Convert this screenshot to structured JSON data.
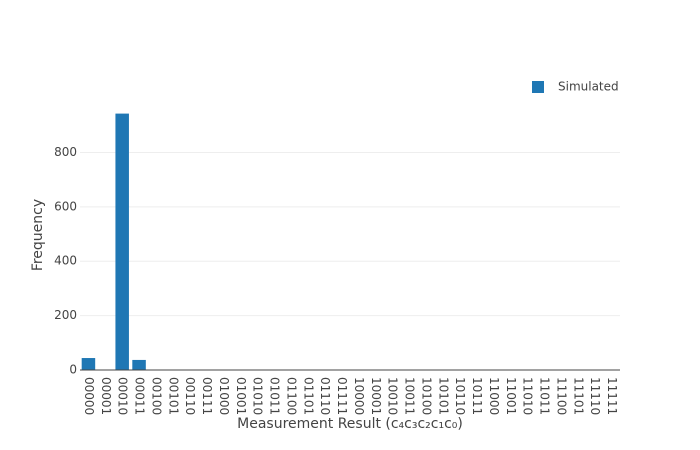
{
  "chart_data": {
    "type": "bar",
    "categories": [
      "00000",
      "00001",
      "00010",
      "00011",
      "00100",
      "00101",
      "00110",
      "00111",
      "01000",
      "01001",
      "01010",
      "01011",
      "01100",
      "01101",
      "01110",
      "01111",
      "10000",
      "10001",
      "10010",
      "10011",
      "10100",
      "10101",
      "10110",
      "10111",
      "11000",
      "11001",
      "11010",
      "11011",
      "11100",
      "11101",
      "11110",
      "11111"
    ],
    "series": [
      {
        "name": "Simulated",
        "color": "#1f77b4",
        "values": [
          44,
          0,
          943,
          37,
          0,
          0,
          0,
          0,
          0,
          0,
          0,
          0,
          0,
          0,
          0,
          0,
          0,
          0,
          0,
          0,
          0,
          0,
          0,
          0,
          0,
          0,
          0,
          0,
          0,
          0,
          0,
          0
        ]
      }
    ],
    "ylim": [
      0,
      993
    ],
    "yticks": [
      0,
      200,
      400,
      600,
      800
    ],
    "grid": true,
    "xlabel": "Measurement Result (c₄c₃c₂c₁c₀)",
    "ylabel": "Frequency",
    "legend": "top-right"
  }
}
